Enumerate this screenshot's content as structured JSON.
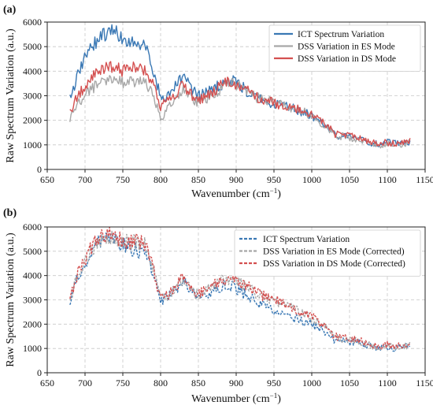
{
  "chart_data": [
    {
      "type": "line",
      "panel_label": "(a)",
      "xlabel": "Wavenumber (cm",
      "xlabel_sup": "−1",
      "xlabel_tail": ")",
      "ylabel": "Raw Spectrum Variation (a.u.)",
      "xlim": [
        650,
        1150
      ],
      "ylim": [
        0,
        6000
      ],
      "xticks": [
        650,
        700,
        750,
        800,
        850,
        900,
        950,
        1000,
        1050,
        1100,
        1150
      ],
      "yticks": [
        0,
        1000,
        2000,
        3000,
        4000,
        5000,
        6000
      ],
      "grid": true,
      "legend_position": "top-right",
      "series": [
        {
          "name": "ICT Spectrum Variation",
          "color": "#3a78b4",
          "dashed": false,
          "x": [
            680,
            690,
            700,
            710,
            720,
            730,
            740,
            750,
            760,
            770,
            780,
            790,
            800,
            810,
            820,
            830,
            840,
            850,
            860,
            870,
            880,
            890,
            900,
            910,
            920,
            930,
            940,
            950,
            960,
            970,
            980,
            990,
            1000,
            1010,
            1020,
            1030,
            1040,
            1050,
            1060,
            1070,
            1080,
            1090,
            1100,
            1110,
            1120,
            1130
          ],
          "y": [
            2950,
            3800,
            4500,
            5000,
            5350,
            5550,
            5600,
            5250,
            5200,
            5200,
            5100,
            4100,
            2900,
            3050,
            3400,
            3800,
            3300,
            3000,
            3100,
            3350,
            3450,
            3650,
            3550,
            3300,
            3050,
            2850,
            2750,
            2700,
            2600,
            2550,
            2400,
            2300,
            2200,
            2000,
            1750,
            1400,
            1350,
            1300,
            1300,
            1150,
            1050,
            1050,
            1100,
            1050,
            1050,
            1150
          ]
        },
        {
          "name": "DSS Variation in ES Mode",
          "color": "#a8a8a8",
          "dashed": false,
          "x": [
            680,
            690,
            700,
            710,
            720,
            730,
            740,
            750,
            760,
            770,
            780,
            790,
            800,
            810,
            820,
            830,
            840,
            850,
            860,
            870,
            880,
            890,
            900,
            910,
            920,
            930,
            940,
            950,
            960,
            970,
            980,
            990,
            1000,
            1010,
            1020,
            1030,
            1040,
            1050,
            1060,
            1070,
            1080,
            1090,
            1100,
            1110,
            1120,
            1130
          ],
          "y": [
            2050,
            2600,
            3000,
            3300,
            3550,
            3650,
            3650,
            3500,
            3550,
            3650,
            3550,
            3050,
            2050,
            2550,
            2850,
            3250,
            2900,
            2750,
            2850,
            3100,
            3300,
            3500,
            3450,
            3250,
            3050,
            2900,
            2800,
            2700,
            2600,
            2550,
            2450,
            2350,
            2200,
            1950,
            1700,
            1400,
            1350,
            1300,
            1250,
            1150,
            1050,
            1000,
            1050,
            1000,
            1000,
            1100
          ]
        },
        {
          "name": "DSS Variation in DS Mode",
          "color": "#d45050",
          "dashed": false,
          "x": [
            680,
            690,
            700,
            710,
            720,
            730,
            740,
            750,
            760,
            770,
            780,
            790,
            800,
            810,
            820,
            830,
            840,
            850,
            860,
            870,
            880,
            890,
            900,
            910,
            920,
            930,
            940,
            950,
            960,
            970,
            980,
            990,
            1000,
            1010,
            1020,
            1030,
            1040,
            1050,
            1060,
            1070,
            1080,
            1090,
            1100,
            1110,
            1120,
            1130
          ],
          "y": [
            2350,
            2950,
            3400,
            3800,
            4050,
            4150,
            4150,
            4000,
            4100,
            4150,
            4000,
            3450,
            2550,
            2800,
            3050,
            3450,
            3050,
            2850,
            2950,
            3200,
            3400,
            3600,
            3500,
            3300,
            3100,
            2900,
            2800,
            2700,
            2650,
            2550,
            2450,
            2350,
            2250,
            2050,
            1800,
            1450,
            1400,
            1350,
            1300,
            1200,
            1100,
            1050,
            1100,
            1050,
            1050,
            1150
          ]
        }
      ]
    },
    {
      "type": "line",
      "panel_label": "(b)",
      "xlabel": "Wavenumber (cm",
      "xlabel_sup": "−1",
      "xlabel_tail": ")",
      "ylabel": "Raw Spectrum Variation (a.u.)",
      "xlim": [
        650,
        1150
      ],
      "ylim": [
        0,
        6000
      ],
      "xticks": [
        650,
        700,
        750,
        800,
        850,
        900,
        950,
        1000,
        1050,
        1100,
        1150
      ],
      "yticks": [
        0,
        1000,
        2000,
        3000,
        4000,
        5000,
        6000
      ],
      "grid": true,
      "legend_position": "top-right",
      "series": [
        {
          "name": "ICT Spectrum Variation",
          "color": "#3a78b4",
          "dashed": true,
          "x": [
            680,
            690,
            700,
            710,
            720,
            730,
            740,
            750,
            760,
            770,
            780,
            790,
            800,
            810,
            820,
            830,
            840,
            850,
            860,
            870,
            880,
            890,
            900,
            910,
            920,
            930,
            940,
            950,
            960,
            970,
            980,
            990,
            1000,
            1010,
            1020,
            1030,
            1040,
            1050,
            1060,
            1070,
            1080,
            1090,
            1100,
            1110,
            1120,
            1130
          ],
          "y": [
            2950,
            3900,
            4500,
            5050,
            5400,
            5550,
            5500,
            5250,
            5150,
            5000,
            4900,
            4000,
            2950,
            3150,
            3400,
            3900,
            3300,
            3100,
            3200,
            3400,
            3550,
            3650,
            3500,
            3250,
            3050,
            2900,
            2700,
            2550,
            2400,
            2300,
            2200,
            2100,
            2000,
            1850,
            1650,
            1350,
            1300,
            1250,
            1250,
            1150,
            1050,
            1000,
            1050,
            1000,
            1050,
            1200
          ]
        },
        {
          "name": "DSS Variation in ES Mode (Corrected)",
          "color": "#a8a8a8",
          "dashed": true,
          "x": [
            680,
            690,
            700,
            710,
            720,
            730,
            740,
            750,
            760,
            770,
            780,
            790,
            800,
            810,
            820,
            830,
            840,
            850,
            860,
            870,
            880,
            890,
            900,
            910,
            920,
            930,
            940,
            950,
            960,
            970,
            980,
            990,
            1000,
            1010,
            1020,
            1030,
            1040,
            1050,
            1060,
            1070,
            1080,
            1090,
            1100,
            1110,
            1120,
            1130
          ],
          "y": [
            3000,
            3950,
            4600,
            5100,
            5450,
            5600,
            5600,
            5400,
            5350,
            5400,
            5250,
            4300,
            3000,
            3200,
            3450,
            3900,
            3350,
            3200,
            3350,
            3550,
            3750,
            3850,
            3800,
            3600,
            3400,
            3200,
            3050,
            2950,
            2850,
            2750,
            2550,
            2400,
            2250,
            2050,
            1800,
            1450,
            1400,
            1350,
            1300,
            1200,
            1100,
            1050,
            1100,
            1050,
            1050,
            1150
          ]
        },
        {
          "name": "DSS Variation in DS Mode (Corrected)",
          "color": "#d45050",
          "dashed": true,
          "x": [
            680,
            690,
            700,
            710,
            720,
            730,
            740,
            750,
            760,
            770,
            780,
            790,
            800,
            810,
            820,
            830,
            840,
            850,
            860,
            870,
            880,
            890,
            900,
            910,
            920,
            930,
            940,
            950,
            960,
            970,
            980,
            990,
            1000,
            1010,
            1020,
            1030,
            1040,
            1050,
            1060,
            1070,
            1080,
            1090,
            1100,
            1110,
            1120,
            1130
          ],
          "y": [
            3050,
            4000,
            4700,
            5200,
            5550,
            5750,
            5650,
            5450,
            5350,
            5450,
            5300,
            4300,
            3000,
            3250,
            3500,
            3950,
            3400,
            3250,
            3400,
            3600,
            3800,
            3900,
            3850,
            3650,
            3450,
            3250,
            3100,
            3000,
            2900,
            2800,
            2600,
            2450,
            2300,
            2100,
            1850,
            1500,
            1450,
            1400,
            1350,
            1250,
            1150,
            1100,
            1150,
            1100,
            1100,
            1200
          ]
        }
      ]
    }
  ]
}
